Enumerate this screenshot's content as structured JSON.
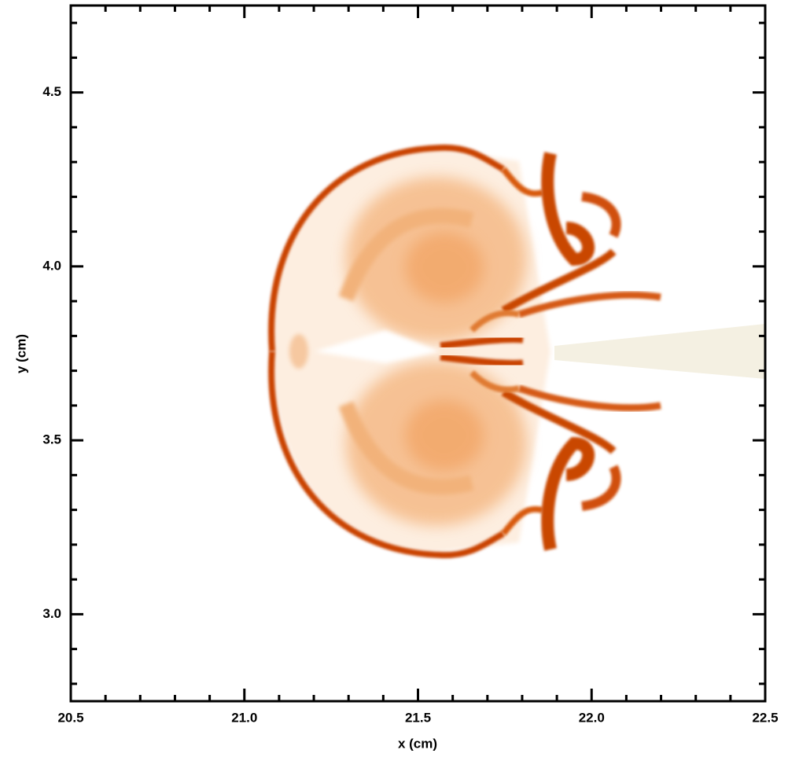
{
  "chart_data": {
    "type": "image",
    "x_label": "x (cm)",
    "y_label": "y (cm)",
    "xlim": [
      20.5,
      22.5
    ],
    "xticks": [
      20.5,
      {
        "value": 21,
        "label": "21.0"
      },
      21.5,
      {
        "value": 22,
        "label": "22.0"
      },
      22.5
    ],
    "xticks_minor": [
      20.6,
      20.7,
      20.8,
      20.9,
      21.1,
      21.2,
      21.3,
      21.4,
      21.6,
      21.7,
      21.8,
      21.9,
      22.1,
      22.2,
      22.3,
      22.4
    ],
    "ylim": [
      2.75,
      4.75
    ],
    "yticks": [
      {
        "value": 3,
        "label": "3.0"
      },
      3.5,
      {
        "value": 4,
        "label": "4.0"
      },
      4.5
    ],
    "yticks_minor": [
      2.8,
      2.9,
      3.1,
      3.2,
      3.3,
      3.4,
      3.6,
      3.7,
      3.8,
      3.9,
      4.1,
      4.2,
      4.3,
      4.4,
      4.6,
      4.7
    ]
  }
}
